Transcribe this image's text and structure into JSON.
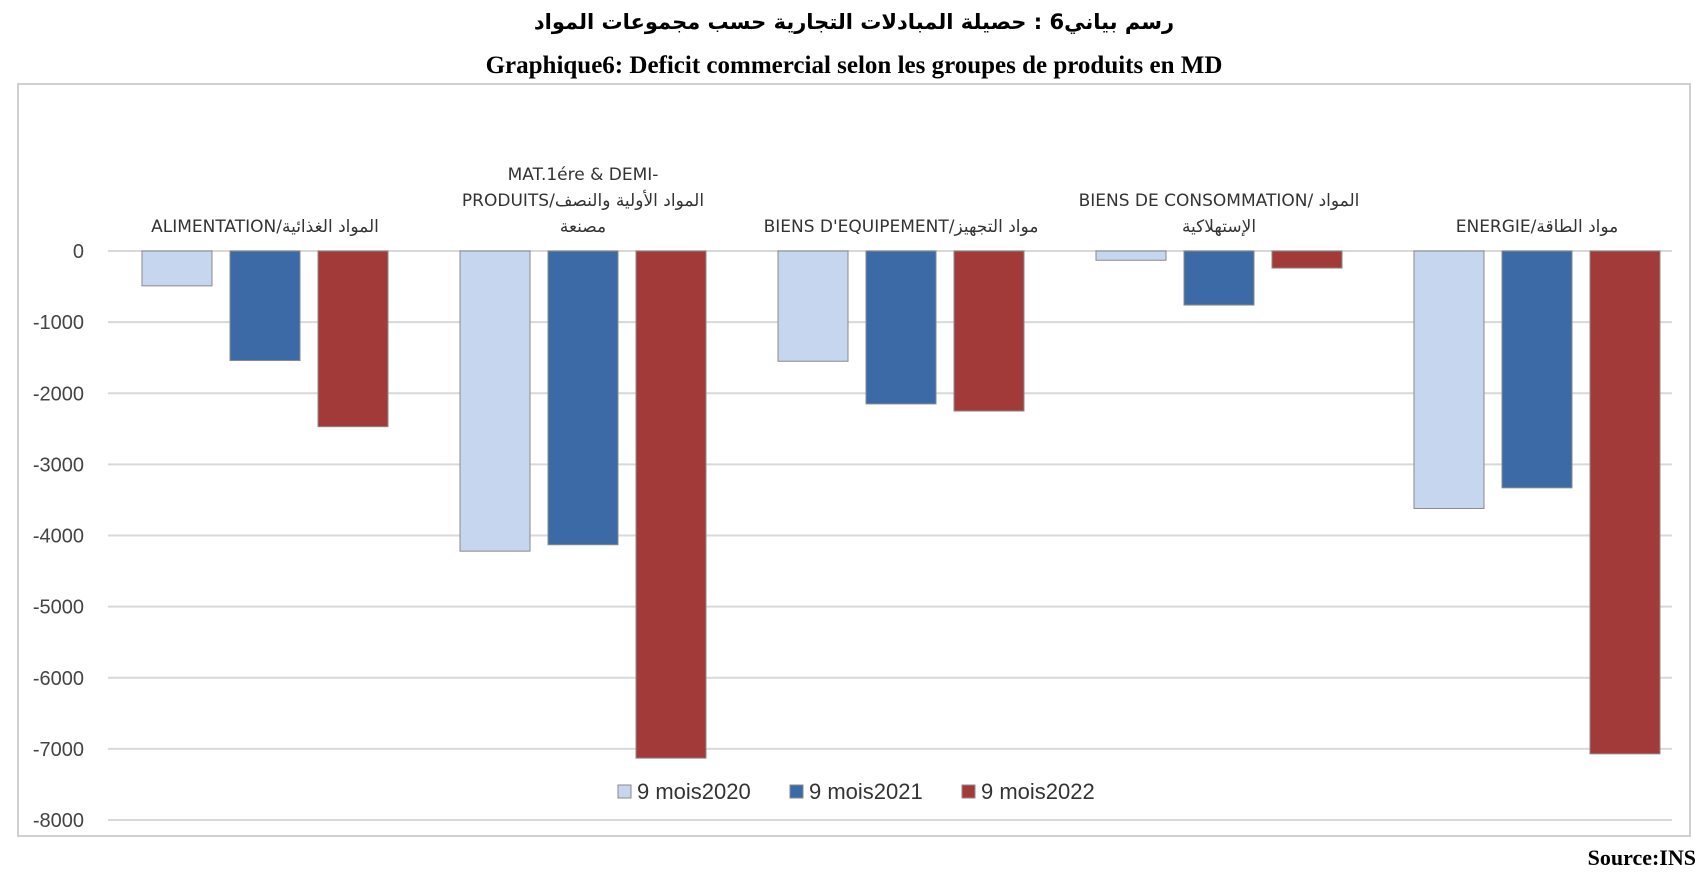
{
  "title_ar": "رسم بياني6 : حصيلة المبادلات التجارية حسب مجموعات المواد",
  "title_fr": "Graphique6: Deficit commercial selon les groupes de produits en MD",
  "source": "Source:INS",
  "chart_data": {
    "type": "bar",
    "categories": [
      {
        "lines": [
          "ALIMENTATION/المواد الغذائية"
        ]
      },
      {
        "lines": [
          "MAT.1ére & DEMI-",
          "PRODUITS/المواد الأولية والنصف",
          "مصنعة"
        ]
      },
      {
        "lines": [
          "BIENS D'EQUIPEMENT/مواد التجهيز"
        ]
      },
      {
        "lines": [
          "BIENS DE CONSOMMATION/ المواد",
          "الإستهلاكية"
        ]
      },
      {
        "lines": [
          "ENERGIE/مواد الطاقة"
        ]
      }
    ],
    "series": [
      {
        "name": "9 mois2020",
        "color": "#c6d6ee",
        "values": [
          -490,
          -4220,
          -1550,
          -130,
          -3620
        ]
      },
      {
        "name": "9 mois2021",
        "color": "#3b6aa6",
        "values": [
          -1540,
          -4130,
          -2150,
          -760,
          -3330
        ]
      },
      {
        "name": "9 mois2022",
        "color": "#a33a3a",
        "values": [
          -2470,
          -7130,
          -2250,
          -240,
          -7070
        ]
      }
    ],
    "y_ticks": [
      "0",
      "-1000",
      "-2000",
      "-3000",
      "-4000",
      "-5000",
      "-6000",
      "-7000",
      "-8000"
    ],
    "ylim": [
      -8000,
      0
    ],
    "grid": true,
    "legend": "bottom-center"
  }
}
